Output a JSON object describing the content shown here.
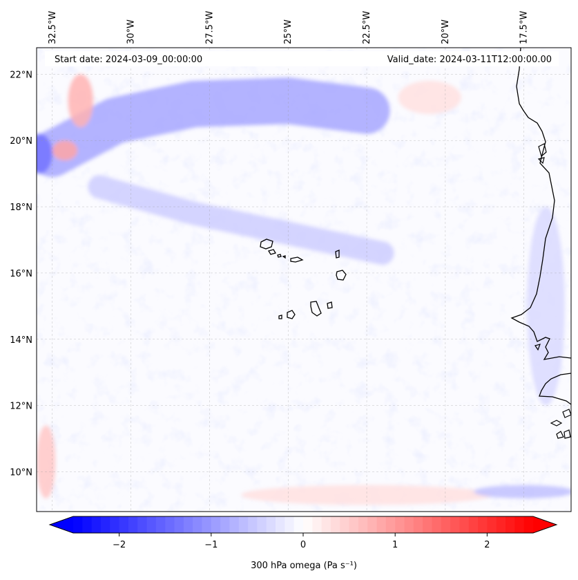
{
  "header": {
    "start_date": "Start date: 2024-03-09_00:00:00",
    "valid_date": "Valid_date: 2024-03-11T12:00:00.00"
  },
  "map": {
    "extent": {
      "lon_min": -33.0,
      "lon_max": -16.0,
      "lat_min": 8.8,
      "lat_max": 22.8
    },
    "lon_ticks": [
      {
        "value": -32.5,
        "label": "32.5°W"
      },
      {
        "value": -30.0,
        "label": "30°W"
      },
      {
        "value": -27.5,
        "label": "27.5°W"
      },
      {
        "value": -25.0,
        "label": "25°W"
      },
      {
        "value": -22.5,
        "label": "22.5°W"
      },
      {
        "value": -20.0,
        "label": "20°W"
      },
      {
        "value": -17.5,
        "label": "17.5°W"
      }
    ],
    "lat_ticks": [
      {
        "value": 22,
        "label": "22°N"
      },
      {
        "value": 20,
        "label": "20°N"
      },
      {
        "value": 18,
        "label": "18°N"
      },
      {
        "value": 16,
        "label": "16°N"
      },
      {
        "value": 14,
        "label": "14°N"
      },
      {
        "value": 12,
        "label": "12°N"
      },
      {
        "value": 10,
        "label": "10°N"
      }
    ],
    "gridlines": true,
    "field_features": [
      {
        "kind": "band",
        "sign": -1,
        "strength": 0.35,
        "points": [
          [
            -32.5,
            19.6
          ],
          [
            -30.5,
            20.6
          ],
          [
            -28,
            21.1
          ],
          [
            -25,
            21.2
          ],
          [
            -22.5,
            20.9
          ]
        ],
        "width": 0.7
      },
      {
        "kind": "band",
        "sign": -1,
        "strength": 0.2,
        "points": [
          [
            -31,
            18.6
          ],
          [
            -28,
            17.8
          ],
          [
            -25,
            17.2
          ],
          [
            -22,
            16.6
          ]
        ],
        "width": 0.35
      },
      {
        "kind": "blob",
        "sign": 1,
        "strength": 0.3,
        "lon": -31.6,
        "lat": 21.2,
        "rlon": 0.4,
        "rlat": 0.8
      },
      {
        "kind": "blob",
        "sign": 1,
        "strength": 0.35,
        "lon": -32.1,
        "lat": 19.7,
        "rlon": 0.4,
        "rlat": 0.3
      },
      {
        "kind": "blob",
        "sign": -1,
        "strength": 0.55,
        "lon": -32.9,
        "lat": 19.6,
        "rlon": 0.4,
        "rlat": 0.6
      },
      {
        "kind": "blob",
        "sign": 1,
        "strength": 0.22,
        "lon": -32.7,
        "lat": 10.3,
        "rlon": 0.3,
        "rlat": 1.1
      },
      {
        "kind": "blob",
        "sign": 1,
        "strength": 0.12,
        "lon": -22.5,
        "lat": 9.3,
        "rlon": 4.0,
        "rlat": 0.3
      },
      {
        "kind": "blob",
        "sign": -1,
        "strength": 0.25,
        "lon": -17.5,
        "lat": 9.4,
        "rlon": 1.6,
        "rlat": 0.2
      },
      {
        "kind": "blob",
        "sign": 1,
        "strength": 0.12,
        "lon": -20.5,
        "lat": 21.3,
        "rlon": 1.0,
        "rlat": 0.5
      },
      {
        "kind": "blob",
        "sign": -1,
        "strength": 0.15,
        "lon": -16.8,
        "lat": 15.0,
        "rlon": 0.6,
        "rlat": 3.0
      }
    ]
  },
  "colorbar": {
    "title": "300 hPa omega (Pa s⁻¹)",
    "vmin": -2.5,
    "vmax": 2.5,
    "levels": 50,
    "extend": "both",
    "ticks": [
      {
        "value": -2,
        "label": "−2"
      },
      {
        "value": -1,
        "label": "−1"
      },
      {
        "value": 0,
        "label": "0"
      },
      {
        "value": 1,
        "label": "1"
      },
      {
        "value": 2,
        "label": "2"
      }
    ],
    "colormap": "bwr",
    "color_low": "#0000ff",
    "color_mid": "#ffffff",
    "color_high": "#ff0000"
  }
}
